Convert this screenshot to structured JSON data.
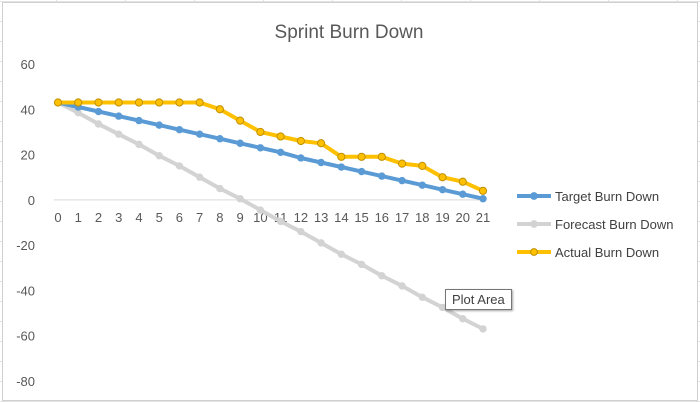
{
  "chart_data": {
    "type": "line",
    "title": "Sprint Burn Down",
    "x": [
      0,
      1,
      2,
      3,
      4,
      5,
      6,
      7,
      8,
      9,
      10,
      11,
      12,
      13,
      14,
      15,
      16,
      17,
      18,
      19,
      20,
      21
    ],
    "ylim": [
      -80,
      60
    ],
    "yticks": [
      60,
      40,
      20,
      0,
      -20,
      -40,
      -60,
      -80
    ],
    "legend_position": "right",
    "series": [
      {
        "name": "Target Burn Down",
        "color": "#5b9bd5",
        "values": [
          43,
          41,
          39,
          37,
          35,
          33,
          31,
          29,
          27,
          25,
          23,
          21,
          18.5,
          16.5,
          14.5,
          12.5,
          10.5,
          8.5,
          6.5,
          4.5,
          2.5,
          0.5
        ]
      },
      {
        "name": "Forecast Burn Down",
        "color": "#d3d3d3",
        "values": [
          43,
          38.5,
          33.5,
          29,
          24.5,
          19.5,
          15,
          10,
          5,
          0.5,
          -4.5,
          -9.5,
          -14,
          -19,
          -24,
          -28.5,
          -33.5,
          -38,
          -43,
          -47.5,
          -52.5,
          -57
        ]
      },
      {
        "name": "Actual Burn Down",
        "color": "#ffc000",
        "marker_edge": "#bf9000",
        "values": [
          43,
          43,
          43,
          43,
          43,
          43,
          43,
          43,
          40,
          35,
          30,
          28,
          26,
          25,
          19,
          19,
          19,
          16,
          15,
          10,
          8,
          4
        ]
      }
    ]
  },
  "tooltip": {
    "label": "Plot Area"
  }
}
